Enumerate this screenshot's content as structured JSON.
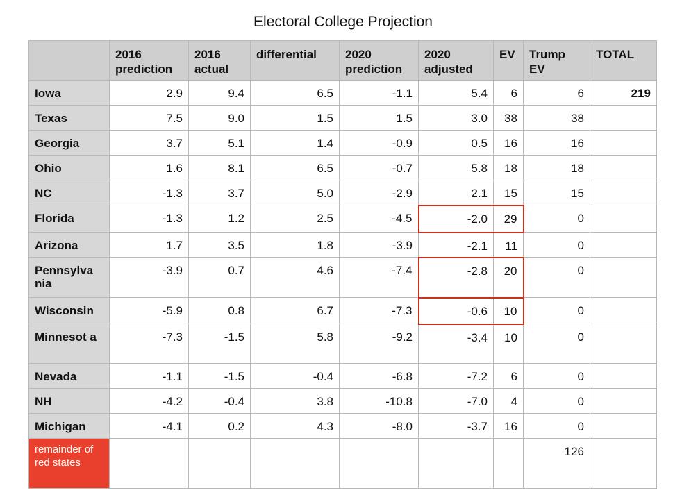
{
  "chart_data": {
    "type": "table",
    "title": "Electoral College Projection",
    "columns": [
      "",
      "2016 prediction",
      "2016 actual",
      "differential",
      "2020 prediction",
      "2020 adjusted",
      "EV",
      "Trump EV",
      "TOTAL"
    ],
    "rows": [
      {
        "state": "Iowa",
        "pred2016": "2.9",
        "actual2016": "9.4",
        "differential": "6.5",
        "pred2020": "-1.1",
        "adjusted2020": "5.4",
        "ev": "6",
        "trump_ev": "6",
        "total": "219"
      },
      {
        "state": "Texas",
        "pred2016": "7.5",
        "actual2016": "9.0",
        "differential": "1.5",
        "pred2020": "1.5",
        "adjusted2020": "3.0",
        "ev": "38",
        "trump_ev": "38",
        "total": ""
      },
      {
        "state": "Georgia",
        "pred2016": "3.7",
        "actual2016": "5.1",
        "differential": "1.4",
        "pred2020": "-0.9",
        "adjusted2020": "0.5",
        "ev": "16",
        "trump_ev": "16",
        "total": ""
      },
      {
        "state": "Ohio",
        "pred2016": "1.6",
        "actual2016": "8.1",
        "differential": "6.5",
        "pred2020": "-0.7",
        "adjusted2020": "5.8",
        "ev": "18",
        "trump_ev": "18",
        "total": ""
      },
      {
        "state": "NC",
        "pred2016": "-1.3",
        "actual2016": "3.7",
        "differential": "5.0",
        "pred2020": "-2.9",
        "adjusted2020": "2.1",
        "ev": "15",
        "trump_ev": "15",
        "total": ""
      },
      {
        "state": "Florida",
        "pred2016": "-1.3",
        "actual2016": "1.2",
        "differential": "2.5",
        "pred2020": "-4.5",
        "adjusted2020": "-2.0",
        "ev": "29",
        "trump_ev": "0",
        "total": ""
      },
      {
        "state": "Arizona",
        "pred2016": "1.7",
        "actual2016": "3.5",
        "differential": "1.8",
        "pred2020": "-3.9",
        "adjusted2020": "-2.1",
        "ev": "11",
        "trump_ev": "0",
        "total": ""
      },
      {
        "state": "Pennsylva nia",
        "pred2016": "-3.9",
        "actual2016": "0.7",
        "differential": "4.6",
        "pred2020": "-7.4",
        "adjusted2020": "-2.8",
        "ev": "20",
        "trump_ev": "0",
        "total": ""
      },
      {
        "state": "Wisconsin",
        "pred2016": "-5.9",
        "actual2016": "0.8",
        "differential": "6.7",
        "pred2020": "-7.3",
        "adjusted2020": "-0.6",
        "ev": "10",
        "trump_ev": "0",
        "total": ""
      },
      {
        "state": "Minnesot a",
        "pred2016": "-7.3",
        "actual2016": "-1.5",
        "differential": "5.8",
        "pred2020": "-9.2",
        "adjusted2020": "-3.4",
        "ev": "10",
        "trump_ev": "0",
        "total": ""
      },
      {
        "state": "Nevada",
        "pred2016": "-1.1",
        "actual2016": "-1.5",
        "differential": "-0.4",
        "pred2020": "-6.8",
        "adjusted2020": "-7.2",
        "ev": "6",
        "trump_ev": "0",
        "total": ""
      },
      {
        "state": "NH",
        "pred2016": "-4.2",
        "actual2016": "-0.4",
        "differential": "3.8",
        "pred2020": "-10.8",
        "adjusted2020": "-7.0",
        "ev": "4",
        "trump_ev": "0",
        "total": ""
      },
      {
        "state": "Michigan",
        "pred2016": "-4.1",
        "actual2016": "0.2",
        "differential": "4.3",
        "pred2020": "-8.0",
        "adjusted2020": "-3.7",
        "ev": "16",
        "trump_ev": "0",
        "total": ""
      },
      {
        "state": "remainder of red states",
        "pred2016": "",
        "actual2016": "",
        "differential": "",
        "pred2020": "",
        "adjusted2020": "",
        "ev": "",
        "trump_ev": "126",
        "total": ""
      }
    ],
    "highlighted_states": [
      "Florida",
      "Pennsylva nia",
      "Wisconsin"
    ],
    "colors": {
      "header_bg": "#cfcfcf",
      "state_bg": "#d7d7d7",
      "remainder_bg": "#e8402c",
      "highlight_border": "#c8321f",
      "grid_line": "#b9b9b9"
    }
  }
}
